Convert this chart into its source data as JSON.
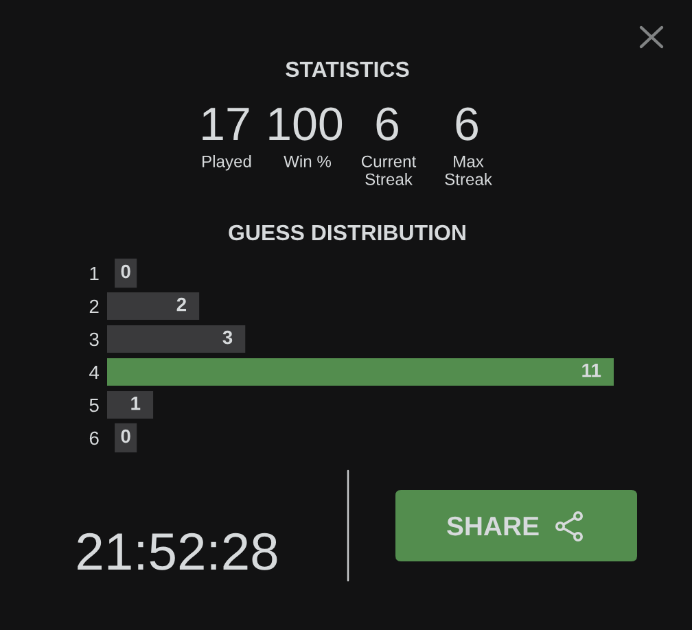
{
  "chart_data": {
    "type": "bar",
    "orientation": "horizontal",
    "title": "GUESS DISTRIBUTION",
    "categories": [
      "1",
      "2",
      "3",
      "4",
      "5",
      "6"
    ],
    "values": [
      0,
      2,
      3,
      11,
      1,
      0
    ],
    "colors": [
      "#3a3a3c",
      "#3a3a3c",
      "#3a3a3c",
      "#538d4e",
      "#3a3a3c",
      "#3a3a3c"
    ],
    "xlim": [
      0,
      11
    ],
    "tick_labels": "y",
    "data_labels": true,
    "annotations": [
      "STATISTICS",
      "17",
      "Played",
      "100",
      "Win %",
      "6",
      "Current\nStreak",
      "6",
      "Max\nStreak",
      "21:52:28",
      "SHARE"
    ]
  }
}
